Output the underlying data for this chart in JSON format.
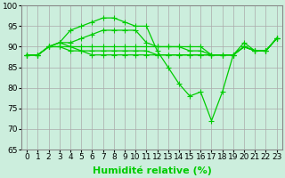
{
  "series": [
    [
      88,
      88,
      90,
      91,
      94,
      95,
      96,
      97,
      97,
      96,
      95,
      95,
      89,
      85,
      81,
      78,
      79,
      72,
      79,
      88,
      91,
      89,
      89,
      92
    ],
    [
      88,
      88,
      90,
      91,
      91,
      92,
      93,
      94,
      94,
      94,
      94,
      91,
      90,
      90,
      90,
      90,
      90,
      88,
      88,
      88,
      90,
      89,
      89,
      92
    ],
    [
      88,
      88,
      90,
      91,
      90,
      90,
      90,
      90,
      90,
      90,
      90,
      90,
      90,
      90,
      90,
      89,
      89,
      88,
      88,
      88,
      90,
      89,
      89,
      92
    ],
    [
      88,
      88,
      90,
      90,
      90,
      89,
      89,
      89,
      89,
      89,
      89,
      89,
      88,
      88,
      88,
      88,
      88,
      88,
      88,
      88,
      90,
      89,
      89,
      92
    ],
    [
      88,
      88,
      90,
      90,
      89,
      89,
      88,
      88,
      88,
      88,
      88,
      88,
      88,
      88,
      88,
      88,
      88,
      88,
      88,
      88,
      90,
      89,
      89,
      92
    ]
  ],
  "line_color": "#00cc00",
  "marker": "+",
  "markersize": 4,
  "linewidth": 0.9,
  "xlabel": "Humidité relative (%)",
  "xlabel_fontsize": 8,
  "xlim": [
    -0.5,
    23.5
  ],
  "ylim": [
    65,
    100
  ],
  "yticks": [
    65,
    70,
    75,
    80,
    85,
    90,
    95,
    100
  ],
  "xticks": [
    0,
    1,
    2,
    3,
    4,
    5,
    6,
    7,
    8,
    9,
    10,
    11,
    12,
    13,
    14,
    15,
    16,
    17,
    18,
    19,
    20,
    21,
    22,
    23
  ],
  "xtick_labels": [
    "0",
    "1",
    "2",
    "3",
    "4",
    "5",
    "6",
    "7",
    "8",
    "9",
    "10",
    "11",
    "12",
    "13",
    "14",
    "15",
    "16",
    "17",
    "18",
    "19",
    "20",
    "21",
    "22",
    "23"
  ],
  "grid_color": "#aaaaaa",
  "background_color": "#cceedd",
  "tick_fontsize": 6.5
}
